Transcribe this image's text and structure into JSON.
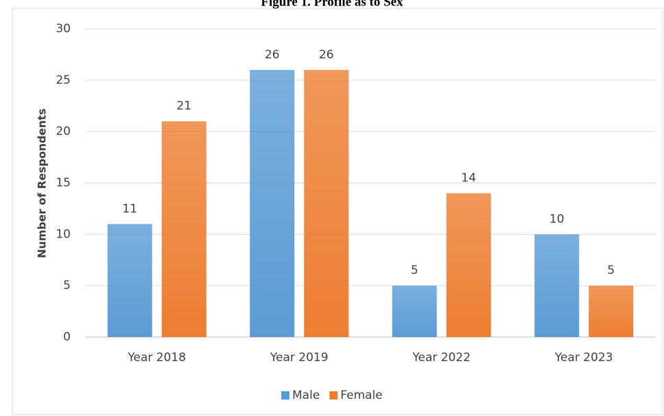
{
  "chart_data": {
    "type": "bar",
    "title": "Figure 1. Profile as to Sex",
    "y_label": "Number of Respondents",
    "categories": [
      "Year 2018",
      "Year 2019",
      "Year 2022",
      "Year 2023"
    ],
    "series": [
      {
        "name": "Male",
        "color": "#5b9bd5",
        "values": [
          11,
          26,
          5,
          10
        ]
      },
      {
        "name": "Female",
        "color": "#ed7d31",
        "values": [
          21,
          26,
          14,
          5
        ]
      }
    ],
    "ylim": [
      0,
      30
    ],
    "yticks": [
      0,
      5,
      10,
      15,
      20,
      25,
      30
    ],
    "grid": true,
    "legend": "bottom"
  }
}
